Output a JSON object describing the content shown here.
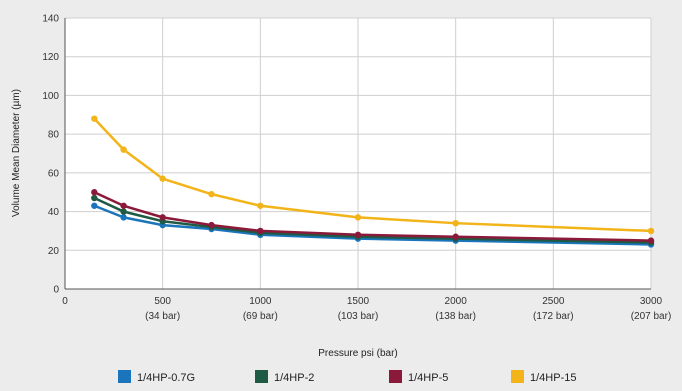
{
  "chart_data": {
    "type": "line",
    "xlabel": "Pressure psi (bar)",
    "ylabel": "Volume Mean Diameter (µm)",
    "xlim": [
      0,
      3000
    ],
    "ylim": [
      0,
      140
    ],
    "yticks": [
      0,
      20,
      40,
      60,
      80,
      100,
      120,
      140
    ],
    "xticks": [
      {
        "value": 0,
        "label": "0",
        "sublabel": ""
      },
      {
        "value": 500,
        "label": "500",
        "sublabel": "(34 bar)"
      },
      {
        "value": 1000,
        "label": "1000",
        "sublabel": "(69 bar)"
      },
      {
        "value": 1500,
        "label": "1500",
        "sublabel": "(103 bar)"
      },
      {
        "value": 2000,
        "label": "2000",
        "sublabel": "(138 bar)"
      },
      {
        "value": 2500,
        "label": "2500",
        "sublabel": "(172 bar)"
      },
      {
        "value": 3000,
        "label": "3000",
        "sublabel": "(207 bar)"
      }
    ],
    "grid": true,
    "legend_position": "bottom",
    "series": [
      {
        "name": "1/4HP-0.7G",
        "color": "#1a75bc",
        "x": [
          150,
          300,
          500,
          750,
          1000,
          1500,
          2000,
          3000
        ],
        "y": [
          43,
          37,
          33,
          31,
          28,
          26,
          25,
          23
        ]
      },
      {
        "name": "1/4HP-2",
        "color": "#1f5a45",
        "x": [
          150,
          300,
          500,
          750,
          1000,
          1500,
          2000,
          3000
        ],
        "y": [
          47,
          40,
          35,
          32,
          29,
          27,
          26,
          24
        ]
      },
      {
        "name": "1/4HP-5",
        "color": "#8b1a3a",
        "x": [
          150,
          300,
          500,
          750,
          1000,
          1500,
          2000,
          3000
        ],
        "y": [
          50,
          43,
          37,
          33,
          30,
          28,
          27,
          25
        ]
      },
      {
        "name": "1/4HP-15",
        "color": "#f2b418",
        "x": [
          150,
          300,
          500,
          750,
          1000,
          1500,
          2000,
          3000
        ],
        "y": [
          88,
          72,
          57,
          49,
          43,
          37,
          34,
          30
        ]
      }
    ]
  }
}
